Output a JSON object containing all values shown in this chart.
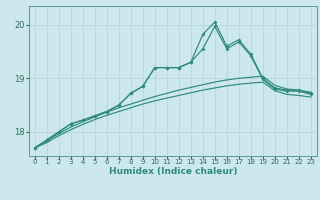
{
  "title": "",
  "xlabel": "Humidex (Indice chaleur)",
  "bg_color": "#cce8ec",
  "line_color": "#2e8b7a",
  "grid_color": "#b0d4d8",
  "spine_color": "#5a9a96",
  "x_ticks": [
    0,
    1,
    2,
    3,
    4,
    5,
    6,
    7,
    8,
    9,
    10,
    11,
    12,
    13,
    14,
    15,
    16,
    17,
    18,
    19,
    20,
    21,
    22,
    23
  ],
  "y_ticks": [
    18,
    19,
    20
  ],
  "ylim": [
    17.55,
    20.35
  ],
  "xlim": [
    -0.5,
    23.5
  ],
  "series": {
    "line_spike_high": [
      17.7,
      17.85,
      18.0,
      18.15,
      18.22,
      18.3,
      18.38,
      18.5,
      18.72,
      18.85,
      19.2,
      19.2,
      19.2,
      19.3,
      19.82,
      20.05,
      19.6,
      19.72,
      19.45,
      19.0,
      18.82,
      18.78,
      18.78,
      18.72
    ],
    "line_spike_low": [
      17.7,
      17.85,
      18.0,
      18.15,
      18.22,
      18.3,
      18.38,
      18.5,
      18.72,
      18.85,
      19.2,
      19.2,
      19.2,
      19.3,
      19.55,
      19.97,
      19.55,
      19.68,
      19.42,
      18.98,
      18.8,
      18.76,
      18.76,
      18.7
    ],
    "line_smooth_top": [
      17.7,
      17.83,
      17.97,
      18.09,
      18.19,
      18.28,
      18.37,
      18.45,
      18.52,
      18.59,
      18.66,
      18.72,
      18.78,
      18.83,
      18.88,
      18.93,
      18.97,
      19.0,
      19.02,
      19.04,
      18.87,
      18.8,
      18.78,
      18.74
    ],
    "line_smooth_bot": [
      17.7,
      17.8,
      17.93,
      18.04,
      18.14,
      18.23,
      18.31,
      18.38,
      18.45,
      18.52,
      18.58,
      18.63,
      18.68,
      18.73,
      18.78,
      18.82,
      18.86,
      18.89,
      18.91,
      18.93,
      18.77,
      18.7,
      18.68,
      18.65
    ]
  }
}
